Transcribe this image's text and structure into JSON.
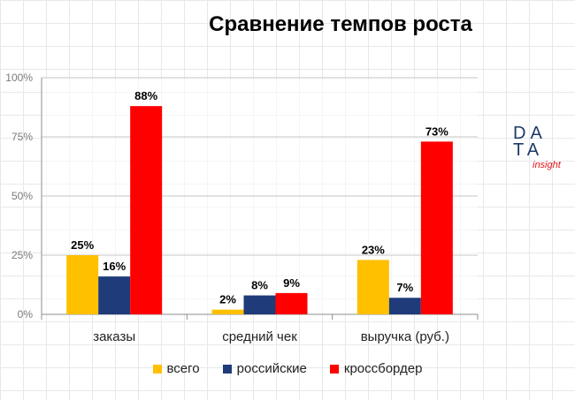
{
  "logo": {
    "line1": "DA",
    "line2": "TA",
    "tag": "insight"
  },
  "chart_data": {
    "type": "bar",
    "title": "Сравнение темпов роста",
    "categories": [
      "заказы",
      "средний чек",
      "выручка (руб.)"
    ],
    "series": [
      {
        "name": "всего",
        "values": [
          25,
          2,
          23
        ],
        "labels": [
          "25%",
          "2%",
          "23%"
        ],
        "color": "#ffc000"
      },
      {
        "name": "российские",
        "values": [
          16,
          8,
          7
        ],
        "labels": [
          "16%",
          "8%",
          "7%"
        ],
        "color": "#1f3b7a"
      },
      {
        "name": "кроссбордер",
        "values": [
          88,
          9,
          73
        ],
        "labels": [
          "88%",
          "9%",
          "73%"
        ],
        "color": "#ff0000"
      }
    ],
    "yticks": [
      "0%",
      "25%",
      "50%",
      "75%",
      "100%"
    ],
    "ylim": [
      0,
      100
    ],
    "grid": true,
    "legend": "bottom"
  }
}
